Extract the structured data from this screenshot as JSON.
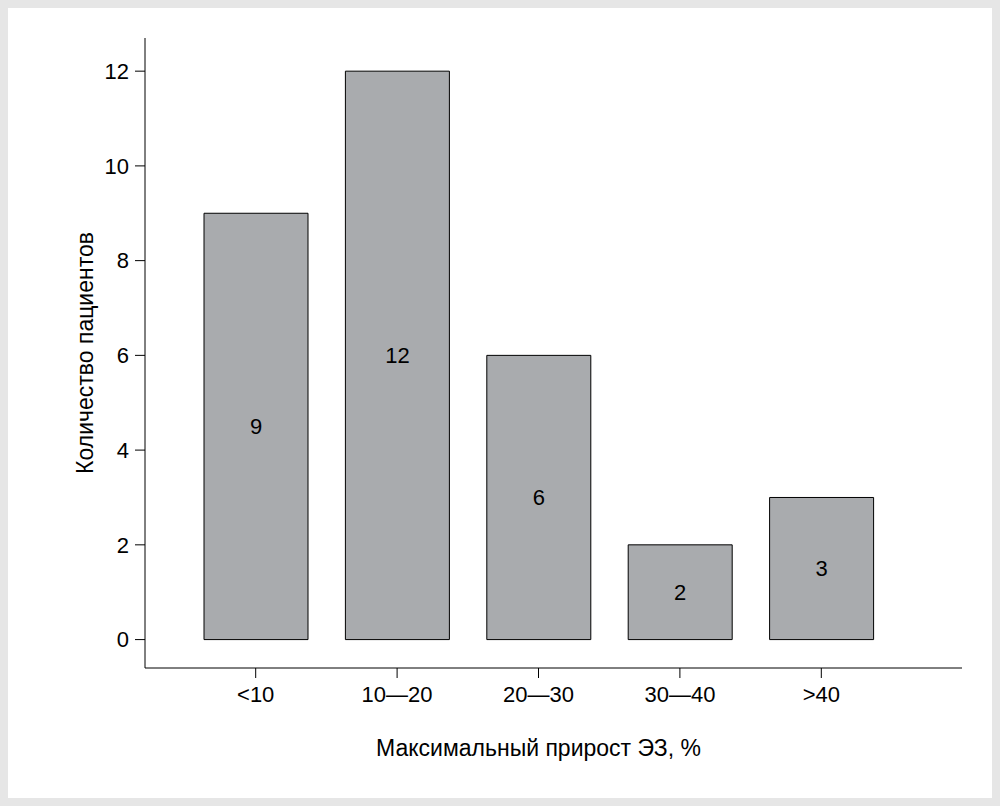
{
  "chart_data": {
    "type": "bar",
    "x_label": "Максимальный прирост ЭЗ, %",
    "y_label": "Количество пациентов",
    "categories": [
      "<10",
      "10—20",
      "20—30",
      "30—40",
      ">40"
    ],
    "values": [
      9,
      12,
      6,
      2,
      3
    ],
    "color": "#a9abae",
    "ylim": [
      -0.6,
      12.7
    ],
    "yticks": [
      0,
      2,
      4,
      6,
      8,
      10,
      12
    ],
    "grid": false,
    "data_labels": true
  }
}
